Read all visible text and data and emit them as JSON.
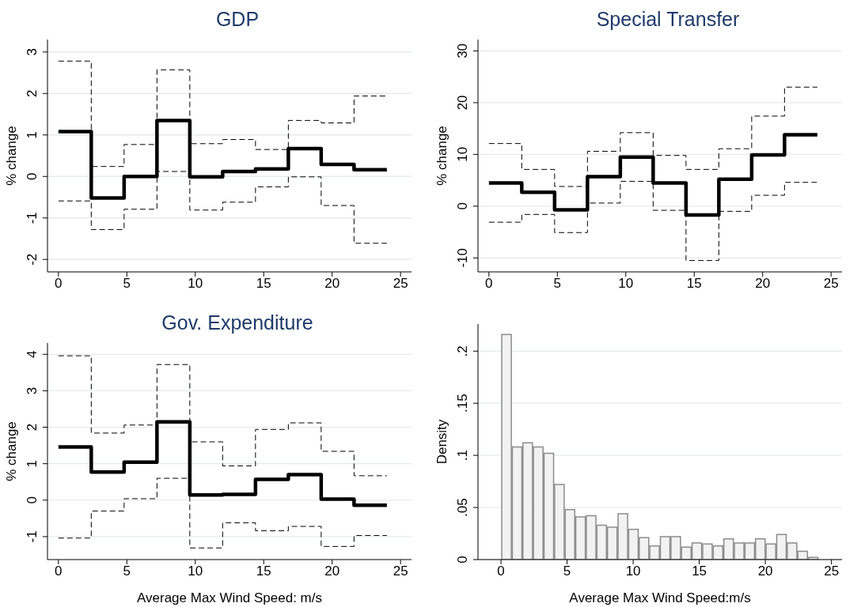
{
  "chart_data": [
    {
      "type": "step",
      "title": "GDP",
      "ylabel": "% change",
      "x": [
        0,
        2.4,
        4.8,
        7.2,
        9.6,
        12,
        14.4,
        16.8,
        19.2,
        21.6,
        24
      ],
      "xlim": [
        -0.8,
        25.8
      ],
      "xticks": [
        0,
        5,
        10,
        15,
        20,
        25
      ],
      "ylim": [
        -2.3,
        3.3
      ],
      "yticks": [
        -2,
        -1,
        0,
        1,
        2,
        3
      ],
      "grid": "y",
      "legend": false,
      "series": [
        {
          "color": "#000000",
          "line_style": "solid",
          "values": [
            1.08,
            -0.52,
            0.0,
            1.35,
            -0.01,
            0.12,
            0.18,
            0.67,
            0.29,
            0.16,
            0.16
          ]
        },
        {
          "color": "#000000",
          "line_style": "dashed",
          "values": [
            2.78,
            0.24,
            0.77,
            2.57,
            0.79,
            0.89,
            0.65,
            1.35,
            1.29,
            1.94,
            1.94
          ]
        },
        {
          "color": "#000000",
          "line_style": "dashed",
          "values": [
            -0.59,
            -1.28,
            -0.79,
            0.12,
            -0.81,
            -0.62,
            -0.25,
            -0.01,
            -0.7,
            -1.61,
            -1.61
          ]
        }
      ]
    },
    {
      "type": "step",
      "title": "Special Transfer",
      "ylabel": "% change",
      "x": [
        0,
        2.4,
        4.8,
        7.2,
        9.6,
        12,
        14.4,
        16.8,
        19.2,
        21.6,
        24
      ],
      "xlim": [
        -0.8,
        25.8
      ],
      "xticks": [
        0,
        5,
        10,
        15,
        20,
        25
      ],
      "ylim": [
        -12.7,
        32.2
      ],
      "yticks": [
        -10,
        0,
        10,
        20,
        30
      ],
      "grid": "y",
      "legend": false,
      "series": [
        {
          "color": "#000000",
          "line_style": "solid",
          "values": [
            4.5,
            2.7,
            -0.7,
            5.7,
            9.5,
            4.5,
            -1.7,
            5.2,
            9.9,
            13.8,
            13.8
          ]
        },
        {
          "color": "#000000",
          "line_style": "dashed",
          "values": [
            12.1,
            7.1,
            3.8,
            10.6,
            14.2,
            9.8,
            7.1,
            11.1,
            17.4,
            23.0,
            23.0
          ]
        },
        {
          "color": "#000000",
          "line_style": "dashed",
          "values": [
            -3.1,
            -1.6,
            -5.1,
            0.6,
            4.8,
            -0.8,
            -10.5,
            -1.0,
            2.1,
            4.6,
            4.6
          ]
        }
      ]
    },
    {
      "type": "step",
      "title": "Gov. Expenditure",
      "ylabel": "% change",
      "xlabel": "Average Max Wind Speed: m/s",
      "x": [
        0,
        2.4,
        4.8,
        7.2,
        9.6,
        12,
        14.4,
        16.8,
        19.2,
        21.6,
        24
      ],
      "xlim": [
        -0.8,
        25.8
      ],
      "xticks": [
        0,
        5,
        10,
        15,
        20,
        25
      ],
      "ylim": [
        -1.63,
        4.31
      ],
      "yticks": [
        -1,
        0,
        1,
        2,
        3,
        4
      ],
      "grid": "y",
      "legend": false,
      "series": [
        {
          "color": "#000000",
          "line_style": "solid",
          "values": [
            1.46,
            0.77,
            1.04,
            2.15,
            0.14,
            0.16,
            0.57,
            0.7,
            0.03,
            -0.14,
            -0.14
          ]
        },
        {
          "color": "#000000",
          "line_style": "dashed",
          "values": [
            3.96,
            1.84,
            2.06,
            3.72,
            1.6,
            0.94,
            1.94,
            2.12,
            1.34,
            0.67,
            0.67
          ]
        },
        {
          "color": "#000000",
          "line_style": "dashed",
          "values": [
            -1.04,
            -0.3,
            0.04,
            0.6,
            -1.31,
            -0.62,
            -0.84,
            -0.72,
            -1.27,
            -0.97,
            -0.97
          ]
        }
      ]
    },
    {
      "type": "histogram",
      "ylabel": "Density",
      "xlabel": "Average Max Wind Speed:m/s",
      "color": "#f2f2f2",
      "xlim": [
        -1.74,
        25.8
      ],
      "xticks": [
        0,
        5,
        10,
        15,
        20,
        25
      ],
      "ylim": [
        0,
        0.226
      ],
      "yticks": [
        0,
        {
          "value": 0.05,
          "label": ".05"
        },
        {
          "value": 0.1,
          "label": ".1"
        },
        {
          "value": 0.15,
          "label": ".15"
        },
        {
          "value": 0.2,
          "label": ".2"
        }
      ],
      "grid": "y",
      "legend": false,
      "bins": [
        0,
        0.8,
        1.6,
        2.4,
        3.2,
        4,
        4.8,
        5.6,
        6.4,
        7.2,
        8,
        8.8,
        9.6,
        10.4,
        11.2,
        12,
        12.8,
        13.6,
        14.4,
        15.2,
        16,
        16.8,
        17.6,
        18.4,
        19.2,
        20,
        20.8,
        21.6,
        22.4,
        23.2,
        24
      ],
      "values": [
        0.216,
        0.108,
        0.112,
        0.108,
        0.102,
        0.072,
        0.048,
        0.041,
        0.042,
        0.033,
        0.031,
        0.044,
        0.029,
        0.021,
        0.013,
        0.022,
        0.022,
        0.012,
        0.016,
        0.015,
        0.013,
        0.02,
        0.016,
        0.016,
        0.02,
        0.015,
        0.024,
        0.016,
        0.008,
        0.002
      ]
    }
  ]
}
